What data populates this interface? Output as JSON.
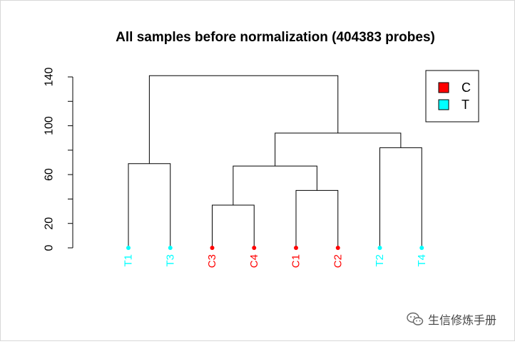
{
  "chart_data": {
    "type": "dendrogram",
    "title": "All samples before normalization (404383 probes)",
    "ylim": [
      0,
      140
    ],
    "yticks": [
      0,
      20,
      40,
      60,
      80,
      100,
      120,
      140
    ],
    "yticklabels": [
      "0",
      "20",
      "",
      "60",
      "",
      "100",
      "",
      "140"
    ],
    "leaves": [
      {
        "label": "T1",
        "group": "T"
      },
      {
        "label": "T3",
        "group": "T"
      },
      {
        "label": "C3",
        "group": "C"
      },
      {
        "label": "C4",
        "group": "C"
      },
      {
        "label": "C1",
        "group": "C"
      },
      {
        "label": "C2",
        "group": "C"
      },
      {
        "label": "T2",
        "group": "T"
      },
      {
        "label": "T4",
        "group": "T"
      }
    ],
    "merges": [
      {
        "id": "m1",
        "left": "T1",
        "right": "T3",
        "height": 69
      },
      {
        "id": "m2",
        "left": "C3",
        "right": "C4",
        "height": 35
      },
      {
        "id": "m3",
        "left": "C1",
        "right": "C2",
        "height": 47
      },
      {
        "id": "m4",
        "left": "m2",
        "right": "m3",
        "height": 67
      },
      {
        "id": "m5",
        "left": "T2",
        "right": "T4",
        "height": 82
      },
      {
        "id": "m6",
        "left": "m4",
        "right": "m5",
        "height": 94
      },
      {
        "id": "m7",
        "left": "m1",
        "right": "m6",
        "height": 141
      }
    ],
    "legend": {
      "position": "top-right",
      "entries": [
        {
          "label": "C",
          "color": "#ff0000"
        },
        {
          "label": "T",
          "color": "#00ffff"
        }
      ]
    },
    "group_colors": {
      "C": "#ff0000",
      "T": "#00ffff"
    }
  },
  "watermark": {
    "text": "生信修炼手册",
    "icon": "wechat-icon"
  }
}
